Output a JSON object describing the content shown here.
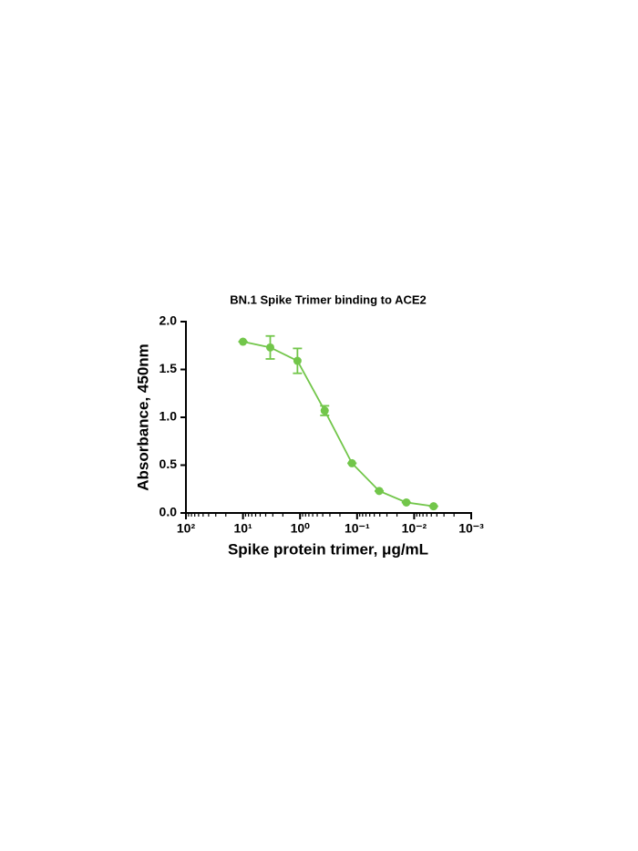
{
  "chart_data": {
    "type": "line",
    "title": "BN.1 Spike Trimer binding to ACE2",
    "x_label": "Spike protein trimer, μg/mL",
    "y_label": "Absorbance, 450nm",
    "x_scale": "log",
    "x_reversed": true,
    "minor_ticks": true,
    "xlim": [
      100,
      0.001
    ],
    "xticks": [
      {
        "value": 100,
        "label": "10²"
      },
      {
        "value": 10,
        "label": "10¹"
      },
      {
        "value": 1,
        "label": "10⁰"
      },
      {
        "value": 0.1,
        "label": "10⁻¹"
      },
      {
        "value": 0.01,
        "label": "10⁻²"
      },
      {
        "value": 0.001,
        "label": "10⁻³"
      }
    ],
    "ylim": [
      0,
      2
    ],
    "yticks": [
      {
        "value": 0,
        "label": "0.0"
      },
      {
        "value": 0.5,
        "label": "0.5"
      },
      {
        "value": 1,
        "label": "1.0"
      },
      {
        "value": 1.5,
        "label": "1.5"
      },
      {
        "value": 2,
        "label": "2.0"
      }
    ],
    "x": [
      10,
      3.33,
      1.11,
      0.37,
      0.123,
      0.041,
      0.0137,
      0.00457
    ],
    "series": [
      {
        "color": "#72c64a",
        "values": [
          1.79,
          1.73,
          1.59,
          1.07,
          0.52,
          0.23,
          0.11,
          0.07
        ],
        "errors": [
          0,
          0.12,
          0.13,
          0.05,
          0,
          0,
          0,
          0
        ]
      }
    ]
  }
}
